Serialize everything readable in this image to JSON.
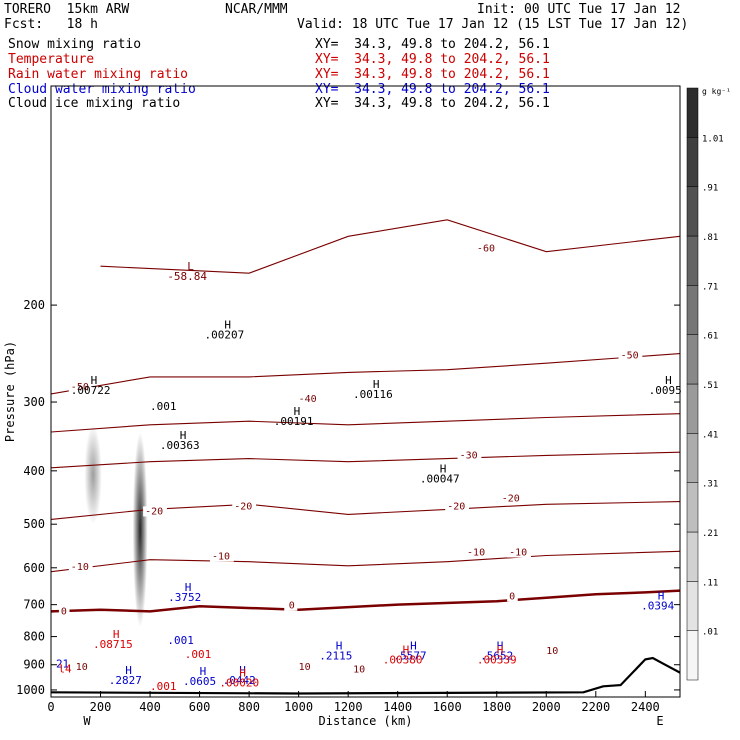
{
  "header": {
    "model": "TORERO  15km ARW",
    "center": "NCAR/MMM",
    "init": "Init: 00 UTC Tue 17 Jan 12",
    "fcst": "Fcst:   18 h",
    "valid": "Valid: 18 UTC Tue 17 Jan 12 (15 LST Tue 17 Jan 12)",
    "fields": [
      {
        "name": "Snow mixing ratio",
        "xy": "XY=  34.3, 49.8 to 204.2, 56.1",
        "color": "#000000"
      },
      {
        "name": "Temperature",
        "xy": "XY=  34.3, 49.8 to 204.2, 56.1",
        "color": "#cc0000"
      },
      {
        "name": "Rain water mixing ratio",
        "xy": "XY=  34.3, 49.8 to 204.2, 56.1",
        "color": "#cc0000"
      },
      {
        "name": "Cloud water mixing ratio",
        "xy": "XY=  34.3, 49.8 to 204.2, 56.1",
        "color": "#0000cc"
      },
      {
        "name": "Cloud ice mixing ratio",
        "xy": "XY=  34.3, 49.8 to 204.2, 56.1",
        "color": "#000000"
      }
    ]
  },
  "colors": {
    "temperature": "#7a0000",
    "rain": "#dd0000",
    "cloud_water": "#0000cc",
    "cloud_ice": "#000000",
    "terrain": "#000000"
  },
  "chart_data": {
    "type": "cross-section",
    "xlabel": "Distance (km)",
    "ylabel": "Pressure (hPa)",
    "xlim": [
      0,
      2540
    ],
    "ylim": [
      1030,
      80
    ],
    "y_scale": "log",
    "x_ticks": [
      0,
      200,
      400,
      600,
      800,
      1000,
      1200,
      1400,
      1600,
      1800,
      2000,
      2200,
      2400
    ],
    "y_ticks": [
      200,
      300,
      400,
      500,
      600,
      700,
      800,
      900,
      1000
    ],
    "x_endpoint_labels": {
      "left": "W",
      "right": "E"
    },
    "colorbar": {
      "unit": "g kg⁻¹",
      "labels": [
        ".01",
        ".11",
        ".21",
        ".31",
        ".41",
        ".51",
        ".61",
        ".71",
        ".81",
        ".91",
        "1.01"
      ],
      "position": "right"
    },
    "temperature_isotherms": [
      {
        "value": 0,
        "bold": true,
        "points": [
          [
            0,
            720
          ],
          [
            200,
            715
          ],
          [
            400,
            720
          ],
          [
            600,
            705
          ],
          [
            1000,
            715
          ],
          [
            1400,
            700
          ],
          [
            1800,
            690
          ],
          [
            2000,
            680
          ],
          [
            2200,
            670
          ],
          [
            2400,
            665
          ],
          [
            2540,
            660
          ]
        ]
      },
      {
        "value": -10,
        "points": [
          [
            0,
            610
          ],
          [
            400,
            580
          ],
          [
            800,
            585
          ],
          [
            1200,
            595
          ],
          [
            1600,
            585
          ],
          [
            2000,
            570
          ],
          [
            2540,
            560
          ]
        ]
      },
      {
        "value": -20,
        "points": [
          [
            0,
            490
          ],
          [
            400,
            470
          ],
          [
            800,
            460
          ],
          [
            1200,
            480
          ],
          [
            1600,
            470
          ],
          [
            2000,
            460
          ],
          [
            2540,
            455
          ]
        ]
      },
      {
        "value": -30,
        "points": [
          [
            0,
            395
          ],
          [
            400,
            385
          ],
          [
            800,
            380
          ],
          [
            1200,
            385
          ],
          [
            1600,
            380
          ],
          [
            2000,
            375
          ],
          [
            2540,
            370
          ]
        ]
      },
      {
        "value": -40,
        "points": [
          [
            0,
            340
          ],
          [
            400,
            330
          ],
          [
            800,
            325
          ],
          [
            1200,
            330
          ],
          [
            1600,
            325
          ],
          [
            2000,
            320
          ],
          [
            2540,
            315
          ]
        ]
      },
      {
        "value": -50,
        "points": [
          [
            0,
            290
          ],
          [
            400,
            270
          ],
          [
            800,
            270
          ],
          [
            1200,
            265
          ],
          [
            1600,
            262
          ],
          [
            2000,
            255
          ],
          [
            2540,
            245
          ]
        ]
      },
      {
        "value": -60,
        "points": [
          [
            200,
            170
          ],
          [
            800,
            175
          ],
          [
            1200,
            150
          ],
          [
            1600,
            140
          ],
          [
            2000,
            160
          ],
          [
            2540,
            150
          ]
        ]
      }
    ],
    "temperature_labels": [
      {
        "text": "0",
        "x": 950,
        "p": 712
      },
      {
        "text": "0",
        "x": 1850,
        "p": 685
      },
      {
        "text": "0",
        "x": 40,
        "p": 730
      },
      {
        "text": "0",
        "x": 960,
        "p": 712
      },
      {
        "text": "-10",
        "x": 80,
        "p": 605
      },
      {
        "text": "-10",
        "x": 650,
        "p": 580
      },
      {
        "text": "-10",
        "x": 1680,
        "p": 570
      },
      {
        "text": "-10",
        "x": 1850,
        "p": 570
      },
      {
        "text": "-20",
        "x": 380,
        "p": 480
      },
      {
        "text": "-20",
        "x": 740,
        "p": 470
      },
      {
        "text": "-20",
        "x": 1600,
        "p": 470
      },
      {
        "text": "-20",
        "x": 1820,
        "p": 455
      },
      {
        "text": "-30",
        "x": 1650,
        "p": 380
      },
      {
        "text": "-40",
        "x": 1000,
        "p": 300
      },
      {
        "text": "-50",
        "x": 80,
        "p": 285
      },
      {
        "text": "-50",
        "x": 2300,
        "p": 250
      },
      {
        "text": "-60",
        "x": 1720,
        "p": 160
      },
      {
        "text": "10",
        "x": 100,
        "p": 920
      },
      {
        "text": "10",
        "x": 1000,
        "p": 920
      },
      {
        "text": "10",
        "x": 1220,
        "p": 930
      },
      {
        "text": "10",
        "x": 2000,
        "p": 860
      }
    ],
    "extrema": [
      {
        "mark": "L",
        "value": "-58.84",
        "x": 550,
        "p": 180,
        "color": "temperature"
      },
      {
        "mark": "H",
        "value": ".00207",
        "x": 700,
        "p": 230,
        "color": "cloud_ice"
      },
      {
        "mark": "H",
        "value": ".00722",
        "x": 160,
        "p": 290,
        "color": "cloud_ice"
      },
      {
        "mark": "H",
        "value": ".00363",
        "x": 520,
        "p": 365,
        "color": "cloud_ice"
      },
      {
        "mark": "H",
        "value": ".00191",
        "x": 980,
        "p": 330,
        "color": "cloud_ice"
      },
      {
        "mark": "H",
        "value": ".00116",
        "x": 1300,
        "p": 295,
        "color": "cloud_ice"
      },
      {
        "mark": "H",
        "value": ".00047",
        "x": 1570,
        "p": 420,
        "color": "cloud_ice"
      },
      {
        "mark": "H",
        "value": ".0095",
        "x": 2480,
        "p": 290,
        "color": "cloud_ice"
      },
      {
        "mark": "H",
        "value": ".3752",
        "x": 540,
        "p": 690,
        "color": "cloud_water"
      },
      {
        "mark": "H",
        "value": ".0394",
        "x": 2450,
        "p": 715,
        "color": "cloud_water"
      },
      {
        "mark": "H",
        "value": ".08715",
        "x": 250,
        "p": 840,
        "color": "rain"
      },
      {
        "mark": "H",
        "value": ".2115",
        "x": 1150,
        "p": 880,
        "color": "cloud_water"
      },
      {
        "mark": "H",
        "value": ".5577",
        "x": 1450,
        "p": 880,
        "color": "cloud_water"
      },
      {
        "mark": "H",
        "value": ".5652",
        "x": 1800,
        "p": 880,
        "color": "cloud_water"
      },
      {
        "mark": "H",
        "value": ".00380",
        "x": 1420,
        "p": 895,
        "color": "rain"
      },
      {
        "mark": "H",
        "value": ".00339",
        "x": 1800,
        "p": 895,
        "color": "rain"
      },
      {
        "mark": "H",
        "value": ".2827",
        "x": 300,
        "p": 975,
        "color": "cloud_water"
      },
      {
        "mark": "H",
        "value": ".0605",
        "x": 600,
        "p": 980,
        "color": "cloud_water"
      },
      {
        "mark": "H",
        "value": ".0442",
        "x": 760,
        "p": 975,
        "color": "cloud_water"
      },
      {
        "mark": "H",
        "value": ".00020",
        "x": 760,
        "p": 985,
        "color": "rain"
      }
    ],
    "other_labels": [
      {
        "text": ".001",
        "x": 400,
        "p": 310,
        "color": "cloud_ice"
      },
      {
        "text": ".001",
        "x": 470,
        "p": 825,
        "color": "cloud_water"
      },
      {
        "text": ".001",
        "x": 540,
        "p": 875,
        "color": "rain"
      },
      {
        "text": ".001",
        "x": 400,
        "p": 1000,
        "color": "rain"
      },
      {
        "text": "21",
        "x": 20,
        "p": 910,
        "color": "cloud_water"
      },
      {
        "text": "l4",
        "x": 30,
        "p": 930,
        "color": "rain"
      }
    ],
    "snow_shading": [
      {
        "x": 170,
        "p_top": 330,
        "p_bottom": 500,
        "width_km": 70,
        "peak": 0.45
      },
      {
        "x": 360,
        "p_top": 340,
        "p_bottom": 770,
        "width_km": 60,
        "peak": 1.0
      }
    ],
    "terrain": [
      [
        0,
        1010
      ],
      [
        1000,
        1015
      ],
      [
        2150,
        1010
      ],
      [
        2230,
        985
      ],
      [
        2300,
        980
      ],
      [
        2400,
        880
      ],
      [
        2430,
        875
      ],
      [
        2480,
        900
      ],
      [
        2540,
        930
      ]
    ]
  }
}
